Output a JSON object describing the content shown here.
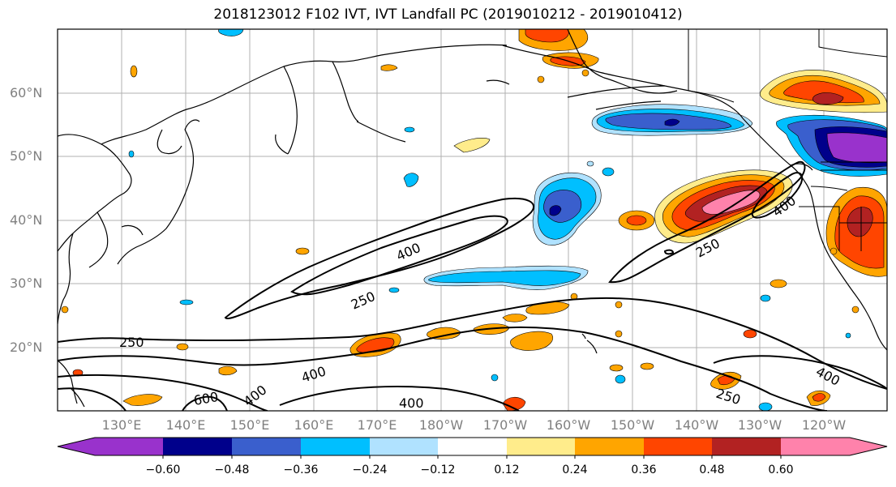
{
  "title": "2018123012 F102 IVT, IVT Landfall PC (2019010212 - 2019010412)",
  "lat_labels": [
    "60°N",
    "50°N",
    "40°N",
    "30°N",
    "20°N"
  ],
  "lon_labels": [
    "130°E",
    "140°E",
    "150°E",
    "160°E",
    "170°E",
    "180°W",
    "170°W",
    "160°W",
    "150°W",
    "140°W",
    "130°W",
    "120°W"
  ],
  "contour_labels": [
    "400",
    "250",
    "400",
    "250",
    "250",
    "400",
    "600",
    "400",
    "400",
    "250",
    "400"
  ],
  "colorbar": {
    "ticks": [
      "−0.60",
      "−0.48",
      "−0.36",
      "−0.24",
      "−0.12",
      "0.12",
      "0.24",
      "0.36",
      "0.48",
      "0.60"
    ],
    "colors": [
      "#9932cc",
      "#00008b",
      "#3a5fcd",
      "#00bfff",
      "#b0e2ff",
      "#ffffff",
      "#ffec8b",
      "#ffa500",
      "#ff4500",
      "#b22222",
      "#ff82ab"
    ]
  }
}
